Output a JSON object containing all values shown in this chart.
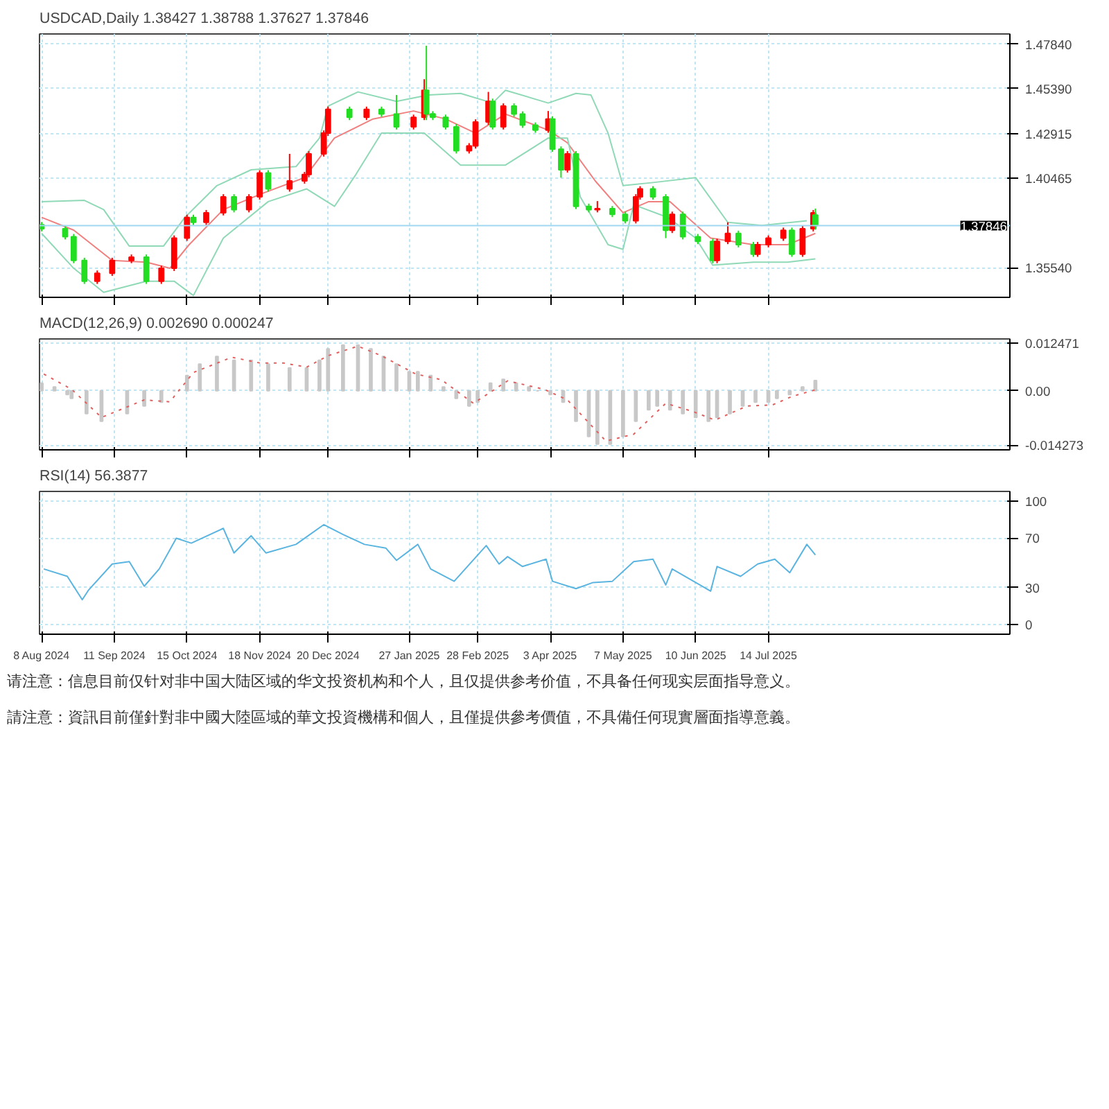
{
  "chart_data": [
    {
      "type": "candlestick",
      "title": "USDCAD,Daily  1.38427 1.38788 1.37627 1.37846",
      "x": [
        "2024-08-08",
        "2024-08-19",
        "2024-08-23",
        "2024-08-28",
        "2024-09-03",
        "2024-09-10",
        "2024-09-19",
        "2024-09-26",
        "2024-10-03",
        "2024-10-09",
        "2024-10-15",
        "2024-10-18",
        "2024-10-24",
        "2024-11-01",
        "2024-11-06",
        "2024-11-13",
        "2024-11-18",
        "2024-11-22",
        "2024-12-02",
        "2024-12-09",
        "2024-12-11",
        "2024-12-18",
        "2024-12-20",
        "2024-12-30",
        "2025-01-07",
        "2025-01-14",
        "2025-01-21",
        "2025-01-29",
        "2025-02-03",
        "2025-02-04",
        "2025-02-07",
        "2025-02-13",
        "2025-02-18",
        "2025-02-24",
        "2025-02-27",
        "2025-03-05",
        "2025-03-07",
        "2025-03-12",
        "2025-03-17",
        "2025-03-21",
        "2025-03-27",
        "2025-04-02",
        "2025-04-04",
        "2025-04-08",
        "2025-04-11",
        "2025-04-15",
        "2025-04-21",
        "2025-04-25",
        "2025-05-02",
        "2025-05-08",
        "2025-05-13",
        "2025-05-15",
        "2025-05-21",
        "2025-05-27",
        "2025-05-30",
        "2025-06-04",
        "2025-06-11",
        "2025-06-18",
        "2025-06-20",
        "2025-06-25",
        "2025-06-30",
        "2025-07-07",
        "2025-07-09",
        "2025-07-14",
        "2025-07-21",
        "2025-07-25",
        "2025-07-30",
        "2025-08-04",
        "2025-08-05"
      ],
      "ohlc": [
        [
          1.379,
          1.3805,
          1.3753,
          1.3768
        ],
        [
          1.3768,
          1.3783,
          1.3709,
          1.3724
        ],
        [
          1.3724,
          1.3739,
          1.3578,
          1.3593
        ],
        [
          1.3593,
          1.3608,
          1.3464,
          1.3479
        ],
        [
          1.3479,
          1.3538,
          1.3464,
          1.3523
        ],
        [
          1.3523,
          1.3608,
          1.3508,
          1.3593
        ],
        [
          1.3593,
          1.3626,
          1.3578,
          1.3611
        ],
        [
          1.3611,
          1.3626,
          1.3464,
          1.3479
        ],
        [
          1.3479,
          1.3565,
          1.3464,
          1.355
        ],
        [
          1.355,
          1.3731,
          1.3535,
          1.3716
        ],
        [
          1.3716,
          1.3845,
          1.3701,
          1.383
        ],
        [
          1.383,
          1.3845,
          1.3788,
          1.3803
        ],
        [
          1.3803,
          1.3871,
          1.3788,
          1.3856
        ],
        [
          1.3856,
          1.3958,
          1.3841,
          1.3943
        ],
        [
          1.3943,
          1.3958,
          1.3858,
          1.3873
        ],
        [
          1.3873,
          1.3958,
          1.3858,
          1.3943
        ],
        [
          1.3943,
          1.409,
          1.3928,
          1.4075
        ],
        [
          1.4075,
          1.409,
          1.3972,
          1.3987
        ],
        [
          1.3987,
          1.418,
          1.3972,
          1.4031
        ],
        [
          1.4031,
          1.4081,
          1.4016,
          1.4066
        ],
        [
          1.4066,
          1.4195,
          1.4051,
          1.418
        ],
        [
          1.418,
          1.4309,
          1.4165,
          1.4294
        ],
        [
          1.4294,
          1.444,
          1.4279,
          1.4425
        ],
        [
          1.4425,
          1.444,
          1.4366,
          1.4381
        ],
        [
          1.4381,
          1.444,
          1.4366,
          1.4425
        ],
        [
          1.4425,
          1.444,
          1.4384,
          1.4399
        ],
        [
          1.4399,
          1.4504,
          1.4314,
          1.4329
        ],
        [
          1.4329,
          1.4396,
          1.4314,
          1.4381
        ],
        [
          1.4381,
          1.4591,
          1.4366,
          1.453
        ],
        [
          1.453,
          1.4775,
          1.4366,
          1.44
        ],
        [
          1.44,
          1.4415,
          1.4366,
          1.4381
        ],
        [
          1.4381,
          1.4396,
          1.4314,
          1.4329
        ],
        [
          1.4329,
          1.4344,
          1.4182,
          1.4197
        ],
        [
          1.4197,
          1.4239,
          1.4182,
          1.4224
        ],
        [
          1.4224,
          1.437,
          1.4209,
          1.4355
        ],
        [
          1.4355,
          1.4521,
          1.434,
          1.4469
        ],
        [
          1.4469,
          1.4484,
          1.4314,
          1.4329
        ],
        [
          1.4329,
          1.4458,
          1.4314,
          1.4443
        ],
        [
          1.4443,
          1.4458,
          1.4384,
          1.4399
        ],
        [
          1.4399,
          1.4414,
          1.4323,
          1.4338
        ],
        [
          1.4338,
          1.4353,
          1.4296,
          1.4311
        ],
        [
          1.4311,
          1.4416,
          1.4296,
          1.4372
        ],
        [
          1.4372,
          1.4387,
          1.4191,
          1.4206
        ],
        [
          1.4206,
          1.4221,
          1.4049,
          1.4092
        ],
        [
          1.4092,
          1.4195,
          1.4077,
          1.418
        ],
        [
          1.418,
          1.4195,
          1.3876,
          1.3891
        ],
        [
          1.3891,
          1.3906,
          1.3858,
          1.3873
        ],
        [
          1.3873,
          1.392,
          1.3858,
          1.3878
        ],
        [
          1.3878,
          1.3893,
          1.3832,
          1.3847
        ],
        [
          1.3847,
          1.3862,
          1.3797,
          1.3812
        ],
        [
          1.3812,
          1.3958,
          1.3797,
          1.3943
        ],
        [
          1.3943,
          1.4002,
          1.3928,
          1.3987
        ],
        [
          1.3987,
          1.4002,
          1.3928,
          1.3943
        ],
        [
          1.3943,
          1.3958,
          1.3716,
          1.3759
        ],
        [
          1.3759,
          1.3862,
          1.3744,
          1.3847
        ],
        [
          1.3847,
          1.3862,
          1.3709,
          1.3724
        ],
        [
          1.3724,
          1.3739,
          1.3683,
          1.3698
        ],
        [
          1.3698,
          1.3713,
          1.3578,
          1.3593
        ],
        [
          1.3593,
          1.3713,
          1.3578,
          1.3698
        ],
        [
          1.3698,
          1.3803,
          1.3683,
          1.3742
        ],
        [
          1.3742,
          1.3757,
          1.3665,
          1.368
        ],
        [
          1.368,
          1.3695,
          1.3613,
          1.3628
        ],
        [
          1.3628,
          1.3695,
          1.3613,
          1.368
        ],
        [
          1.368,
          1.3731,
          1.3665,
          1.3716
        ],
        [
          1.3716,
          1.3774,
          1.3701,
          1.3759
        ],
        [
          1.3759,
          1.3774,
          1.3613,
          1.3628
        ],
        [
          1.3628,
          1.3783,
          1.3613,
          1.3768
        ],
        [
          1.3768,
          1.3871,
          1.3753,
          1.3856
        ],
        [
          1.38427,
          1.38788,
          1.37627,
          1.37846
        ]
      ],
      "colors": [
        "#22dd22",
        "#22dd22",
        "#22dd22",
        "#22dd22",
        "#ff0000",
        "#ff0000",
        "#ff0000",
        "#22dd22",
        "#ff0000",
        "#ff0000",
        "#ff0000",
        "#22dd22",
        "#ff0000",
        "#ff0000",
        "#22dd22",
        "#ff0000",
        "#ff0000",
        "#22dd22",
        "#ff0000",
        "#ff0000",
        "#ff0000",
        "#ff0000",
        "#ff0000",
        "#22dd22",
        "#ff0000",
        "#22dd22",
        "#22dd22",
        "#ff0000",
        "#ff0000",
        "#22dd22",
        "#22dd22",
        "#22dd22",
        "#22dd22",
        "#ff0000",
        "#ff0000",
        "#ff0000",
        "#22dd22",
        "#ff0000",
        "#22dd22",
        "#22dd22",
        "#22dd22",
        "#ff0000",
        "#22dd22",
        "#22dd22",
        "#ff0000",
        "#22dd22",
        "#22dd22",
        "#ff0000",
        "#22dd22",
        "#22dd22",
        "#ff0000",
        "#ff0000",
        "#22dd22",
        "#22dd22",
        "#ff0000",
        "#22dd22",
        "#22dd22",
        "#22dd22",
        "#ff0000",
        "#ff0000",
        "#22dd22",
        "#22dd22",
        "#ff0000",
        "#ff0000",
        "#ff0000",
        "#22dd22",
        "#ff0000",
        "#ff0000",
        "#22dd22"
      ],
      "series": [
        {
          "type": "line",
          "color": "#8fd9b6",
          "x": [
            "2024-08-08",
            "2024-08-28",
            "2024-09-06",
            "2024-09-18",
            "2024-10-04",
            "2024-10-14",
            "2024-10-29",
            "2024-11-14",
            "2024-12-05",
            "2024-12-16",
            "2024-12-20",
            "2025-01-03",
            "2025-01-21",
            "2025-02-05",
            "2025-02-20",
            "2025-03-07",
            "2025-03-13",
            "2025-04-02",
            "2025-04-15",
            "2025-04-22",
            "2025-04-30",
            "2025-05-07",
            "2025-05-21",
            "2025-06-10",
            "2025-06-25",
            "2025-07-11",
            "2025-08-01"
          ],
          "values": [
            1.3917,
            1.3924,
            1.3873,
            1.3672,
            1.3672,
            1.383,
            1.4005,
            1.4092,
            1.411,
            1.4267,
            1.4443,
            1.4521,
            1.4469,
            1.4504,
            1.4513,
            1.446,
            1.453,
            1.446,
            1.4513,
            1.4504,
            1.4294,
            1.4005,
            1.4022,
            1.4049,
            1.3803,
            1.3786,
            1.3812
          ]
        },
        {
          "type": "line",
          "color": "#f08080",
          "x": [
            "2024-08-08",
            "2024-08-23",
            "2024-09-10",
            "2024-09-26",
            "2024-10-07",
            "2024-10-16",
            "2024-11-01",
            "2024-11-19",
            "2024-12-09",
            "2024-12-23",
            "2025-01-10",
            "2025-01-29",
            "2025-02-13",
            "2025-02-27",
            "2025-03-13",
            "2025-04-02",
            "2025-04-11",
            "2025-04-24",
            "2025-05-07",
            "2025-05-19",
            "2025-05-29",
            "2025-06-17",
            "2025-07-07",
            "2025-07-23",
            "2025-08-05"
          ],
          "values": [
            1.383,
            1.376,
            1.3593,
            1.3584,
            1.355,
            1.368,
            1.3873,
            1.3961,
            1.4049,
            1.4267,
            1.4372,
            1.4416,
            1.4372,
            1.4294,
            1.4399,
            1.4311,
            1.4241,
            1.4031,
            1.3856,
            1.3917,
            1.3917,
            1.3716,
            1.368,
            1.368,
            1.3742
          ]
        },
        {
          "type": "line",
          "color": "#8fd9b6",
          "x": [
            "2024-08-08",
            "2024-08-23",
            "2024-09-06",
            "2024-09-26",
            "2024-10-09",
            "2024-10-18",
            "2024-11-01",
            "2024-11-22",
            "2024-12-10",
            "2024-12-23",
            "2025-01-02",
            "2025-01-14",
            "2025-02-03",
            "2025-02-20",
            "2025-03-13",
            "2025-04-02",
            "2025-04-11",
            "2025-04-17",
            "2025-04-30",
            "2025-05-07",
            "2025-05-12",
            "2025-05-28",
            "2025-06-10",
            "2025-06-18",
            "2025-07-07",
            "2025-07-23",
            "2025-08-05"
          ],
          "values": [
            1.3742,
            1.355,
            1.3418,
            1.3479,
            1.3479,
            1.34,
            1.3716,
            1.3917,
            1.3987,
            1.3891,
            1.4066,
            1.4294,
            1.4294,
            1.4118,
            1.4118,
            1.4267,
            1.4267,
            1.3943,
            1.368,
            1.3654,
            1.39,
            1.383,
            1.3716,
            1.3567,
            1.3584,
            1.3584,
            1.3602
          ]
        }
      ],
      "xlim": [
        "2024-08-07",
        "2025-11-04"
      ],
      "xticks": [
        "2024-08-08",
        "2024-09-11",
        "2024-10-15",
        "2024-11-18",
        "2024-12-20",
        "2025-01-27",
        "2025-02-28",
        "2025-04-03",
        "2025-05-07",
        "2025-06-10",
        "2025-07-14"
      ],
      "ylim": [
        1.339,
        1.484
      ],
      "yticks": [
        {
          "value": 1.4784,
          "label": "1.47840"
        },
        {
          "value": 1.4539,
          "label": "1.45390"
        },
        {
          "value": 1.42915,
          "label": "1.42915"
        },
        {
          "value": 1.40465,
          "label": "1.40465"
        },
        {
          "value": 1.3554,
          "label": "1.35540"
        }
      ],
      "ref_lines": [
        {
          "axis": "y",
          "value": 1.37846,
          "label": "1.37846",
          "color": "#9fd8f0"
        }
      ],
      "grid": true,
      "tick_labels": "y"
    },
    {
      "type": "bar",
      "title": "MACD(12,26,9) 0.002690 0.000247",
      "series": [
        {
          "type": "bar",
          "color": "#c8c8c8",
          "x": [
            "2024-08-08",
            "2024-08-14",
            "2024-08-20",
            "2024-08-22",
            "2024-08-29",
            "2024-09-05",
            "2024-09-17",
            "2024-09-25",
            "2024-10-03",
            "2024-10-09",
            "2024-10-15",
            "2024-10-21",
            "2024-10-29",
            "2024-11-06",
            "2024-11-14",
            "2024-11-22",
            "2024-12-02",
            "2024-12-10",
            "2024-12-16",
            "2024-12-20",
            "2024-12-27",
            "2025-01-03",
            "2025-01-09",
            "2025-01-15",
            "2025-01-21",
            "2025-01-27",
            "2025-01-31",
            "2025-02-06",
            "2025-02-12",
            "2025-02-18",
            "2025-02-24",
            "2025-02-28",
            "2025-03-06",
            "2025-03-12",
            "2025-03-18",
            "2025-03-24",
            "2025-03-28",
            "2025-04-03",
            "2025-04-09",
            "2025-04-15",
            "2025-04-21",
            "2025-04-25",
            "2025-05-01",
            "2025-05-07",
            "2025-05-13",
            "2025-05-19",
            "2025-05-23",
            "2025-05-29",
            "2025-06-04",
            "2025-06-10",
            "2025-06-16",
            "2025-06-20",
            "2025-06-26",
            "2025-07-02",
            "2025-07-08",
            "2025-07-14",
            "2025-07-18",
            "2025-07-24",
            "2025-07-30",
            "2025-08-05"
          ],
          "values": [
            0.002,
            0.001,
            -0.001,
            -0.002,
            -0.006,
            -0.008,
            -0.006,
            -0.004,
            -0.003,
            0.0,
            0.004,
            0.007,
            0.009,
            0.008,
            0.008,
            0.007,
            0.006,
            0.006,
            0.008,
            0.011,
            0.012,
            0.012,
            0.011,
            0.009,
            0.007,
            0.005,
            0.005,
            0.004,
            0.001,
            -0.002,
            -0.004,
            -0.003,
            0.002,
            0.003,
            0.002,
            0.001,
            0.0,
            -0.001,
            -0.003,
            -0.008,
            -0.012,
            -0.014,
            -0.014,
            -0.012,
            -0.008,
            -0.005,
            -0.004,
            -0.005,
            -0.006,
            -0.007,
            -0.008,
            -0.007,
            -0.006,
            -0.004,
            -0.003,
            -0.003,
            -0.002,
            -0.001,
            0.001,
            0.00269
          ]
        },
        {
          "type": "line",
          "color": "#e06060",
          "line_style": "dotted",
          "x": [
            "2024-08-09",
            "2024-08-22",
            "2024-09-05",
            "2024-09-25",
            "2024-10-07",
            "2024-10-18",
            "2024-11-05",
            "2024-11-18",
            "2024-11-29",
            "2024-12-10",
            "2024-12-20",
            "2025-01-03",
            "2025-01-14",
            "2025-01-30",
            "2025-02-11",
            "2025-02-26",
            "2025-03-14",
            "2025-03-31",
            "2025-04-11",
            "2025-04-21",
            "2025-04-29",
            "2025-05-12",
            "2025-05-27",
            "2025-06-09",
            "2025-06-19",
            "2025-07-04",
            "2025-07-16",
            "2025-07-25",
            "2025-08-05"
          ],
          "values": [
            0.0044,
            0.0004,
            -0.007,
            -0.0024,
            -0.0029,
            0.0048,
            0.0088,
            0.0073,
            0.0073,
            0.0062,
            0.0092,
            0.0117,
            0.0092,
            0.0044,
            0.0029,
            -0.0033,
            0.0026,
            0.0004,
            -0.0024,
            -0.0084,
            -0.0132,
            -0.0114,
            -0.0033,
            -0.0055,
            -0.0077,
            -0.004,
            -0.0037,
            -0.0015,
            0.000247
          ]
        }
      ],
      "xlim": [
        "2024-08-07",
        "2025-11-04"
      ],
      "xticks": [
        "2024-08-08",
        "2024-09-11",
        "2024-10-15",
        "2024-11-18",
        "2024-12-20",
        "2025-01-27",
        "2025-02-28",
        "2025-04-03",
        "2025-05-07",
        "2025-06-10",
        "2025-07-14"
      ],
      "ylim": [
        -0.0155,
        0.0136
      ],
      "yticks": [
        {
          "value": 0.012471,
          "label": "0.012471"
        },
        {
          "value": 0,
          "label": "0.00"
        },
        {
          "value": -0.014273,
          "label": "-0.014273"
        }
      ],
      "grid": true,
      "tick_labels": "y"
    },
    {
      "type": "line",
      "title": "RSI(14) 56.3877",
      "series": [
        {
          "type": "line",
          "color": "#5ab4e0",
          "x": [
            "2024-08-09",
            "2024-08-20",
            "2024-08-27",
            "2024-08-30",
            "2024-09-10",
            "2024-09-18",
            "2024-09-25",
            "2024-10-02",
            "2024-10-10",
            "2024-10-17",
            "2024-11-01",
            "2024-11-06",
            "2024-11-14",
            "2024-11-21",
            "2024-12-05",
            "2024-12-18",
            "2024-12-27",
            "2025-01-06",
            "2025-01-16",
            "2025-01-21",
            "2025-01-31",
            "2025-02-06",
            "2025-02-17",
            "2025-03-04",
            "2025-03-10",
            "2025-03-14",
            "2025-03-21",
            "2025-04-01",
            "2025-04-04",
            "2025-04-15",
            "2025-04-23",
            "2025-05-02",
            "2025-05-12",
            "2025-05-21",
            "2025-05-27",
            "2025-05-30",
            "2025-06-09",
            "2025-06-17",
            "2025-06-20",
            "2025-07-01",
            "2025-07-09",
            "2025-07-17",
            "2025-07-24",
            "2025-08-01",
            "2025-08-05"
          ],
          "values": [
            45,
            39,
            20,
            28,
            49,
            51,
            31,
            45,
            70,
            66,
            78,
            58,
            72,
            58,
            65,
            81,
            73,
            65,
            62,
            52,
            65,
            45,
            35,
            64,
            49,
            55,
            47,
            53,
            35,
            29,
            34,
            35,
            51,
            53,
            32,
            45,
            35,
            27,
            47,
            39,
            49,
            53,
            42,
            65,
            56.3877
          ]
        }
      ],
      "xlim": [
        "2024-08-07",
        "2025-11-04"
      ],
      "xticks": [
        {
          "value": "2024-08-08",
          "label": "8 Aug 2024"
        },
        {
          "value": "2024-09-11",
          "label": "11 Sep 2024"
        },
        {
          "value": "2024-10-15",
          "label": "15 Oct 2024"
        },
        {
          "value": "2024-11-18",
          "label": "18 Nov 2024"
        },
        {
          "value": "2024-12-20",
          "label": "20 Dec 2024"
        },
        {
          "value": "2025-01-27",
          "label": "27 Jan 2025"
        },
        {
          "value": "2025-02-28",
          "label": "28 Feb 2025"
        },
        {
          "value": "2025-04-03",
          "label": "3 Apr 2025"
        },
        {
          "value": "2025-05-07",
          "label": "7 May 2025"
        },
        {
          "value": "2025-06-10",
          "label": "10 Jun 2025"
        },
        {
          "value": "2025-07-14",
          "label": "14 Jul 2025"
        }
      ],
      "ylim": [
        -8,
        108
      ],
      "yticks": [
        100,
        70,
        30,
        0
      ],
      "grid": true,
      "annotations": [
        "请注意：信息目前仅针对非中国大陆区域的华文投资机构和个人，且仅提供参考价值，不具备任何现实层面指导意义。",
        "請注意：資訊目前僅針對非中國大陸區域的華文投資機構和個人，且僅提供參考價值，不具備任何現實層面指導意義。"
      ]
    }
  ]
}
